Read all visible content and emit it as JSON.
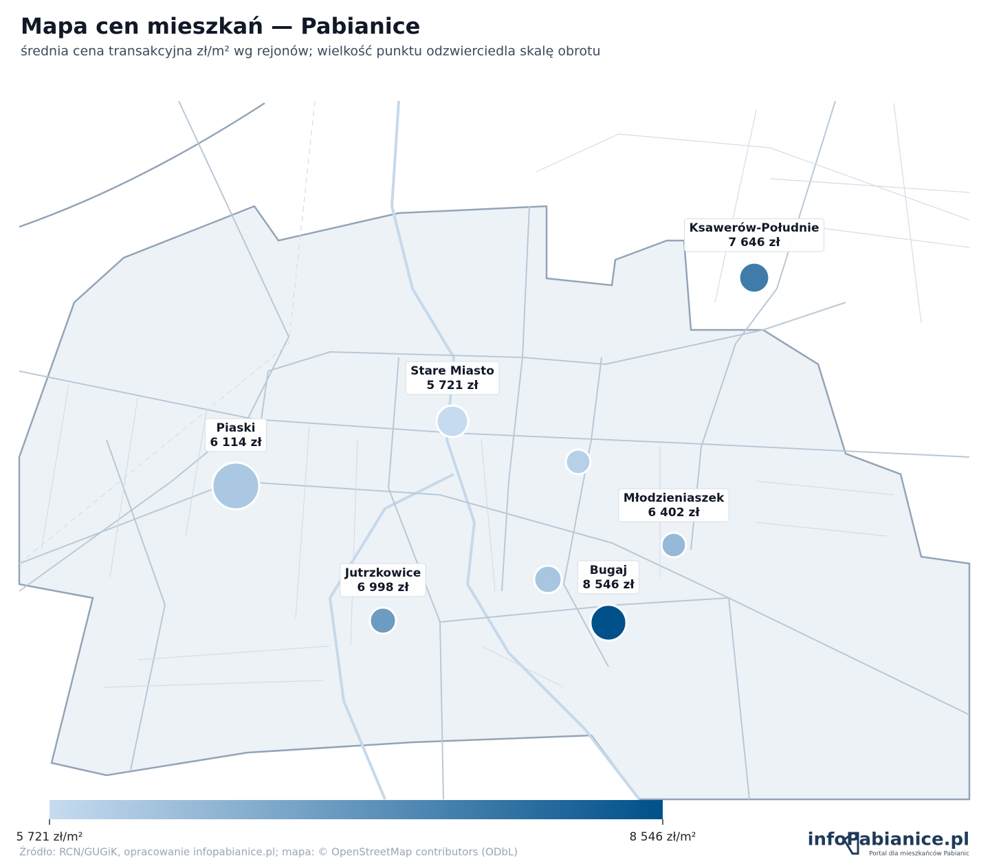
{
  "title": "Mapa cen mieszkań — Pabianice",
  "subtitle": "średnia cena transakcyjna zł/m² wg rejonów; wielkość punktu odzwierciedla skalę obrotu",
  "points": [
    {
      "name": "Ksawerów-Południe",
      "value": 7646,
      "value_label": "7 646 zł",
      "size": 48
    },
    {
      "name": "Stare Miasto",
      "value": 5721,
      "value_label": "5 721 zł",
      "size": 53
    },
    {
      "name": "Piaski",
      "value": 6114,
      "value_label": "6 114 zł",
      "size": 116
    },
    {
      "name": null,
      "value": 5950,
      "size": 32
    },
    {
      "name": "Młodzieniaszek",
      "value": 6402,
      "value_label": "6 402 zł",
      "size": 32
    },
    {
      "name": null,
      "value": 6150,
      "size": 40
    },
    {
      "name": "Jutrzkowice",
      "value": 6998,
      "value_label": "6 998 zł",
      "size": 36
    },
    {
      "name": "Bugaj",
      "value": 8546,
      "value_label": "8 546 zł",
      "size": 68
    }
  ],
  "colorbar": {
    "colors": [
      "#c6dbef",
      "#00508a"
    ],
    "lim": [
      5721,
      8546
    ],
    "ticks": [
      {
        "value": 5721,
        "label": "5 721 zł/m²"
      },
      {
        "value": 8546,
        "label": "8 546 zł/m²"
      }
    ]
  },
  "footer": {
    "source": "Źródło: RCN/GUGiK, opracowanie infopabianice.pl; mapa: © OpenStreetMap contributors (ODbL)",
    "logo": "infoPabianice.pl",
    "logo_tagline": "Portal dla mieszkańców Pabianic"
  }
}
